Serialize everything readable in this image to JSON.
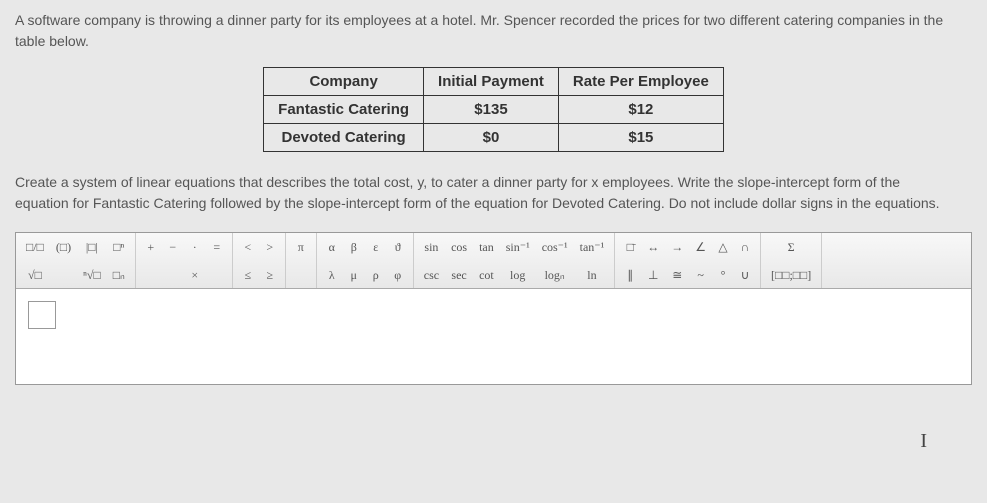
{
  "problem": {
    "line1": "A software company is throwing a dinner party for its employees at a hotel. Mr. Spencer recorded the prices for two different catering companies in the",
    "line2": "table below."
  },
  "table": {
    "headers": [
      "Company",
      "Initial Payment",
      "Rate Per Employee"
    ],
    "rows": [
      [
        "Fantastic Catering",
        "$135",
        "$12"
      ],
      [
        "Devoted Catering",
        "$0",
        "$15"
      ]
    ]
  },
  "instruction": {
    "line1": "Create a system of linear equations that describes the total cost, y, to cater a dinner party for x employees. Write the slope-intercept form of the",
    "line2": "equation for Fantastic Catering followed by the slope-intercept form of the equation for Devoted Catering. Do not include dollar signs in the equations."
  },
  "toolbar": {
    "g1": [
      "□/□",
      "(□)",
      "|□|",
      "□ⁿ"
    ],
    "g1b": [
      "√□",
      "",
      "ⁿ√□",
      "□ₙ"
    ],
    "g2": [
      "+",
      "−",
      "·",
      "="
    ],
    "g2b": [
      "",
      "",
      "×",
      ""
    ],
    "g3": [
      "<",
      ">",
      "≤",
      "≥"
    ],
    "g4": [
      "π"
    ],
    "g5": [
      "α",
      "β",
      "ε",
      "ϑ"
    ],
    "g5b": [
      "λ",
      "μ",
      "ρ",
      "φ"
    ],
    "g6": [
      "sin",
      "cos",
      "tan",
      "sin⁻¹",
      "cos⁻¹",
      "tan⁻¹"
    ],
    "g6b": [
      "csc",
      "sec",
      "cot",
      "log",
      "logₙ",
      "ln"
    ],
    "g7": [
      "□̄",
      "↔",
      "→",
      "∠",
      "△",
      "∩"
    ],
    "g7b": [
      "∥",
      "⊥",
      "≅",
      "~",
      "°",
      "∪"
    ],
    "g8": [
      "Σ"
    ],
    "g8b": [
      "[□□;□□]"
    ]
  },
  "colors": {
    "bg": "#e8e8e8",
    "text": "#555555",
    "border": "#333333",
    "toolbar_bg_top": "#f8f8f8",
    "toolbar_bg_bot": "#e8e8e8",
    "toolbar_border": "#aaaaaa"
  }
}
